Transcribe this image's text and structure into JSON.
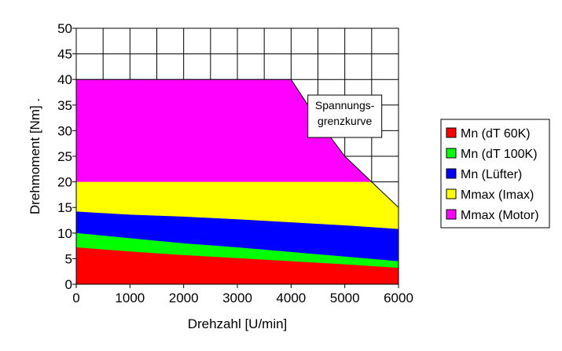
{
  "chart_data": {
    "type": "area",
    "xlabel": "Drehzahl [U/min]",
    "ylabel": "Drehmoment [Nm] .",
    "xlim": [
      0,
      6000
    ],
    "ylim": [
      0,
      50
    ],
    "xticks": [
      0,
      1000,
      2000,
      3000,
      4000,
      5000,
      6000
    ],
    "yticks": [
      0,
      5,
      10,
      15,
      20,
      25,
      30,
      35,
      40,
      45,
      50
    ],
    "grid": true,
    "legend_position": "right",
    "annotation": {
      "lines": [
        "Spannungs-",
        "grenzkurve"
      ],
      "anchor": {
        "x": 5000,
        "y": 34.5
      }
    },
    "series": [
      {
        "name": "Mmax (Motor)",
        "color": "#ff00ff",
        "points": [
          [
            0,
            40
          ],
          [
            4000,
            40
          ],
          [
            4500,
            32
          ],
          [
            5000,
            25
          ],
          [
            5500,
            20
          ],
          [
            6000,
            15
          ]
        ]
      },
      {
        "name": "Mmax (Imax)",
        "color": "#ffff00",
        "points": [
          [
            0,
            20
          ],
          [
            5500,
            20
          ],
          [
            6000,
            15
          ]
        ]
      },
      {
        "name": "Mn (Lüfter)",
        "color": "#0000ff",
        "points": [
          [
            0,
            14.2
          ],
          [
            1000,
            13.6
          ],
          [
            2000,
            13.2
          ],
          [
            3000,
            12.7
          ],
          [
            4000,
            12.1
          ],
          [
            5000,
            11.5
          ],
          [
            6000,
            10.8
          ]
        ]
      },
      {
        "name": "Mn (dT 100K)",
        "color": "#00ff00",
        "points": [
          [
            0,
            10
          ],
          [
            1000,
            9
          ],
          [
            2000,
            8
          ],
          [
            3000,
            7.2
          ],
          [
            4000,
            6.3
          ],
          [
            5000,
            5.4
          ],
          [
            6000,
            4.5
          ]
        ]
      },
      {
        "name": "Mn (dT 60K)",
        "color": "#ff0000",
        "points": [
          [
            0,
            7.2
          ],
          [
            1000,
            6.4
          ],
          [
            2000,
            5.7
          ],
          [
            3000,
            5.1
          ],
          [
            4000,
            4.5
          ],
          [
            5000,
            3.9
          ],
          [
            6000,
            3.2
          ]
        ]
      }
    ],
    "legend_order": [
      "Mn (dT 60K)",
      "Mn (dT 100K)",
      "Mn (Lüfter)",
      "Mmax (Imax)",
      "Mmax (Motor)"
    ]
  }
}
